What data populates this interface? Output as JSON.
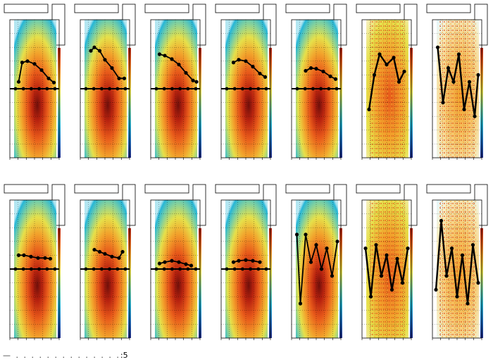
{
  "footer": {
    "text": ":5"
  },
  "colors": {
    "frame": "#000000",
    "profile": "#000000",
    "palette": [
      "#1e2a8a",
      "#1f6fc4",
      "#25b6d8",
      "#7fd0a0",
      "#e6e04a",
      "#f2a12b",
      "#e85a1a",
      "#b8230f",
      "#6e0f0a"
    ]
  },
  "chart_data": [
    {
      "panel": 1,
      "type": "heatmap",
      "row": 1,
      "profile": [
        [
          -0.45,
          0.1
        ],
        [
          -0.35,
          0.38
        ],
        [
          -0.2,
          0.4
        ],
        [
          0,
          0.36
        ],
        [
          0.2,
          0.27
        ],
        [
          0.4,
          0.15
        ],
        [
          0.55,
          0.09
        ]
      ],
      "baseline": 0.0
    },
    {
      "panel": 2,
      "type": "heatmap",
      "row": 1,
      "profile": [
        [
          -0.4,
          0.55
        ],
        [
          -0.3,
          0.6
        ],
        [
          -0.15,
          0.55
        ],
        [
          0,
          0.42
        ],
        [
          0.2,
          0.3
        ],
        [
          0.4,
          0.15
        ],
        [
          0.55,
          0.15
        ]
      ],
      "baseline": 0.0
    },
    {
      "panel": 3,
      "type": "heatmap",
      "row": 1,
      "profile": [
        [
          -0.45,
          0.5
        ],
        [
          -0.3,
          0.48
        ],
        [
          -0.1,
          0.43
        ],
        [
          0.1,
          0.35
        ],
        [
          0.3,
          0.23
        ],
        [
          0.5,
          0.12
        ],
        [
          0.6,
          0.1
        ]
      ],
      "baseline": 0.0
    },
    {
      "panel": 4,
      "type": "heatmap",
      "row": 1,
      "profile": [
        [
          -0.35,
          0.38
        ],
        [
          -0.2,
          0.42
        ],
        [
          0,
          0.4
        ],
        [
          0.2,
          0.32
        ],
        [
          0.4,
          0.22
        ],
        [
          0.55,
          0.17
        ]
      ],
      "baseline": 0.0
    },
    {
      "panel": 5,
      "type": "heatmap",
      "row": 1,
      "profile": [
        [
          -0.3,
          0.26
        ],
        [
          -0.15,
          0.3
        ],
        [
          0,
          0.29
        ],
        [
          0.2,
          0.25
        ],
        [
          0.4,
          0.18
        ],
        [
          0.55,
          0.14
        ]
      ],
      "baseline": 0.0
    },
    {
      "panel": 6,
      "type": "heatmap",
      "row": 1,
      "profile": [
        [
          -0.5,
          -0.3
        ],
        [
          -0.35,
          0.2
        ],
        [
          -0.2,
          0.5
        ],
        [
          0,
          0.35
        ],
        [
          0.2,
          0.45
        ],
        [
          0.35,
          0.1
        ],
        [
          0.5,
          0.25
        ]
      ],
      "baseline": null
    },
    {
      "panel": 7,
      "type": "heatmap",
      "row": 1,
      "profile": [
        [
          -0.55,
          0.6
        ],
        [
          -0.4,
          -0.2
        ],
        [
          -0.25,
          0.3
        ],
        [
          -0.1,
          0.1
        ],
        [
          0.05,
          0.5
        ],
        [
          0.2,
          -0.3
        ],
        [
          0.35,
          0.1
        ],
        [
          0.5,
          -0.4
        ],
        [
          0.6,
          0.2
        ]
      ],
      "baseline": null
    },
    {
      "panel": 8,
      "type": "heatmap",
      "row": 2,
      "profile": [
        [
          -0.45,
          0.2
        ],
        [
          -0.3,
          0.2
        ],
        [
          -0.1,
          0.18
        ],
        [
          0.1,
          0.16
        ],
        [
          0.3,
          0.16
        ],
        [
          0.45,
          0.15
        ]
      ],
      "baseline": 0.0
    },
    {
      "panel": 9,
      "type": "heatmap",
      "row": 2,
      "profile": [
        [
          -0.3,
          0.28
        ],
        [
          -0.15,
          0.25
        ],
        [
          0,
          0.22
        ],
        [
          0.2,
          0.18
        ],
        [
          0.4,
          0.16
        ],
        [
          0.5,
          0.25
        ]
      ],
      "baseline": 0.0
    },
    {
      "panel": 10,
      "type": "heatmap",
      "row": 2,
      "profile": [
        [
          -0.45,
          0.08
        ],
        [
          -0.3,
          0.1
        ],
        [
          -0.1,
          0.12
        ],
        [
          0.1,
          0.1
        ],
        [
          0.3,
          0.07
        ],
        [
          0.45,
          0.05
        ]
      ],
      "baseline": 0.0
    },
    {
      "panel": 11,
      "type": "heatmap",
      "row": 2,
      "profile": [
        [
          -0.35,
          0.1
        ],
        [
          -0.2,
          0.12
        ],
        [
          0,
          0.13
        ],
        [
          0.2,
          0.12
        ],
        [
          0.4,
          0.1
        ]
      ],
      "baseline": 0.0
    },
    {
      "panel": 12,
      "type": "heatmap",
      "row": 2,
      "profile": [
        [
          -0.55,
          0.5
        ],
        [
          -0.45,
          -0.5
        ],
        [
          -0.3,
          0.5
        ],
        [
          -0.15,
          0.1
        ],
        [
          0,
          0.35
        ],
        [
          0.15,
          0.0
        ],
        [
          0.3,
          0.3
        ],
        [
          0.45,
          -0.1
        ],
        [
          0.6,
          0.4
        ]
      ],
      "baseline": null
    },
    {
      "panel": 13,
      "type": "heatmap",
      "row": 2,
      "profile": [
        [
          -0.6,
          0.3
        ],
        [
          -0.45,
          -0.4
        ],
        [
          -0.3,
          0.35
        ],
        [
          -0.15,
          -0.1
        ],
        [
          0,
          0.2
        ],
        [
          0.15,
          -0.3
        ],
        [
          0.3,
          0.15
        ],
        [
          0.45,
          -0.2
        ],
        [
          0.6,
          0.3
        ]
      ],
      "baseline": null
    },
    {
      "panel": 14,
      "type": "heatmap",
      "row": 2,
      "profile": [
        [
          -0.6,
          -0.3
        ],
        [
          -0.45,
          0.7
        ],
        [
          -0.3,
          -0.1
        ],
        [
          -0.15,
          0.3
        ],
        [
          0,
          -0.4
        ],
        [
          0.15,
          0.2
        ],
        [
          0.3,
          -0.5
        ],
        [
          0.45,
          0.35
        ],
        [
          0.6,
          -0.2
        ]
      ],
      "baseline": null
    }
  ]
}
